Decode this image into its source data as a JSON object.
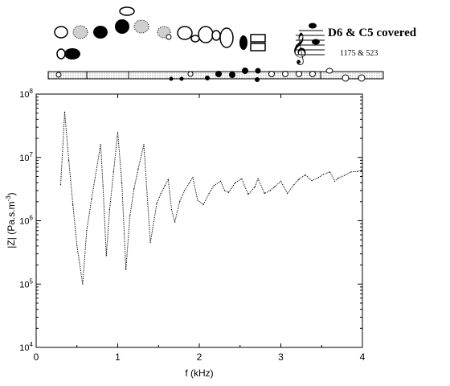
{
  "header": {
    "title": "D6 & C5 covered",
    "frequencies": "1175 & 523"
  },
  "chart_data": {
    "type": "line",
    "title": "D6 & C5 covered",
    "xlabel": "f (kHz)",
    "ylabel": "|Z| (Pa.s.m^-3)",
    "xlim": [
      0,
      4
    ],
    "ylim": [
      10000,
      100000000
    ],
    "yscale": "log",
    "grid": false,
    "x_ticks": [
      "0",
      "1",
      "2",
      "3",
      "4"
    ],
    "y_ticks": [
      {
        "base": "10",
        "exp": "4"
      },
      {
        "base": "10",
        "exp": "5"
      },
      {
        "base": "10",
        "exp": "6"
      },
      {
        "base": "10",
        "exp": "7"
      },
      {
        "base": "10",
        "exp": "8"
      }
    ],
    "series": [
      {
        "x": [
          0.3,
          0.35,
          0.4,
          0.45,
          0.5,
          0.57,
          0.62,
          0.68,
          0.74,
          0.79,
          0.82,
          0.86,
          0.9,
          0.95,
          1.0,
          1.05,
          1.1,
          1.15,
          1.2,
          1.25,
          1.32,
          1.4,
          1.48,
          1.53,
          1.58,
          1.62,
          1.66,
          1.7,
          1.76,
          1.82,
          1.88,
          1.92,
          1.98,
          2.05,
          2.12,
          2.18,
          2.26,
          2.31,
          2.36,
          2.44,
          2.52,
          2.6,
          2.68,
          2.72,
          2.8,
          2.87,
          2.92,
          3.0,
          3.08,
          3.16,
          3.22,
          3.3,
          3.38,
          3.46,
          3.52,
          3.6,
          3.66,
          3.7,
          3.78,
          3.86,
          3.94,
          3.99
        ],
        "y": [
          3700000,
          52000000,
          9000000,
          1800000,
          400000,
          100000,
          700000,
          2200000,
          6500000,
          16000000,
          3500000,
          280000,
          1500000,
          6000000,
          25000000,
          4000000,
          170000,
          1200000,
          3200000,
          6500000,
          16000000,
          450000,
          1900000,
          2700000,
          3600000,
          4500000,
          1500000,
          950000,
          2000000,
          3000000,
          4000000,
          4800000,
          2100000,
          1800000,
          2700000,
          3600000,
          4200000,
          3000000,
          2800000,
          4000000,
          4600000,
          2600000,
          3400000,
          4600000,
          2700000,
          3000000,
          3400000,
          4200000,
          2700000,
          3700000,
          4500000,
          5300000,
          4300000,
          4800000,
          5400000,
          5900000,
          4200000,
          4700000,
          5200000,
          5900000,
          6000000,
          6300000
        ]
      }
    ]
  }
}
